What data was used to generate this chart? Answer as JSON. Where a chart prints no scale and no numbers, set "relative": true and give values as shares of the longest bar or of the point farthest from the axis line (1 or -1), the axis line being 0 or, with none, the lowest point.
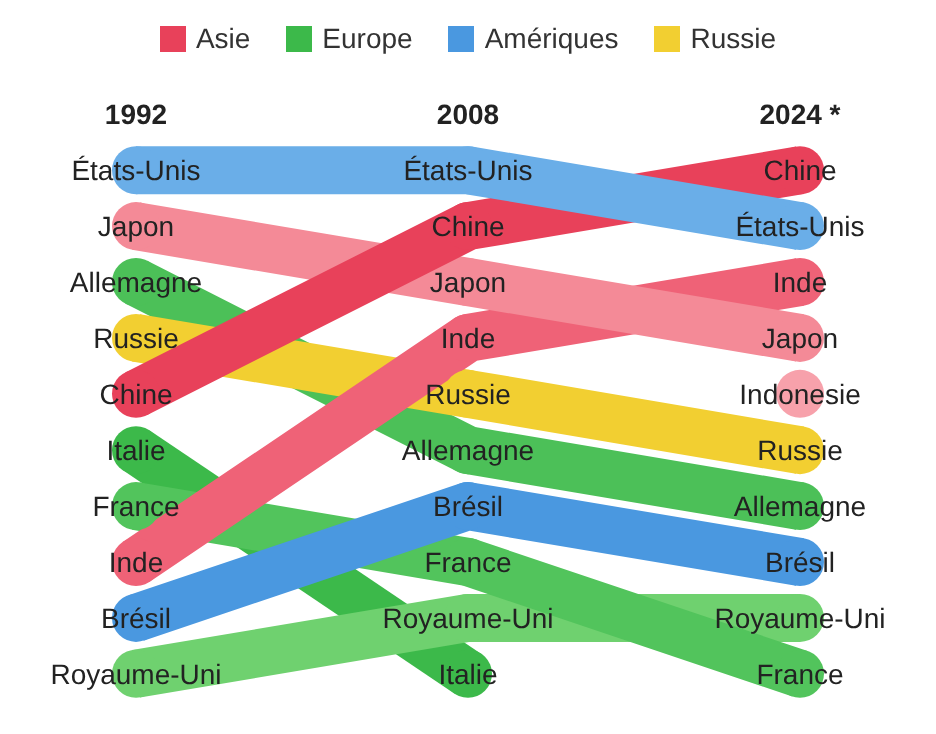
{
  "chart_data": {
    "type": "line",
    "categories": [
      "1992",
      "2008",
      "2024 *"
    ],
    "relative": true,
    "legend": "top",
    "marker": "circle",
    "series": [
      {
        "name": "Asie",
        "color": "#e8415a",
        "values": [
          null,
          null,
          null
        ]
      },
      {
        "name": "Europe",
        "color": "#3cb94a",
        "values": [
          null,
          null,
          null
        ]
      },
      {
        "name": "Amériques",
        "color": "#4a98e0",
        "values": [
          null,
          null,
          null
        ]
      },
      {
        "name": "Russie",
        "color": "#f2cf31",
        "values": [
          null,
          null,
          null
        ]
      },
      {
        "name": "Italie",
        "color": "#3cb94a",
        "values": [
          0.444,
          0,
          null
        ]
      },
      {
        "name": "Royaume-Uni",
        "color": "#6fd16f",
        "values": [
          0,
          0.111,
          0.111
        ]
      },
      {
        "name": "France",
        "color": "#52c45c",
        "values": [
          0.333,
          0.222,
          0
        ]
      },
      {
        "name": "Brésil",
        "color": "#4a98e0",
        "values": [
          0.111,
          0.333,
          0.222
        ]
      },
      {
        "name": "Allemagne",
        "color": "#4cc058",
        "values": [
          0.778,
          0.444,
          0.333
        ]
      },
      {
        "name": "Russie",
        "color": "#f2cf31",
        "values": [
          0.667,
          0.556,
          0.444
        ]
      },
      {
        "name": "Indonesie",
        "color": "#f7a1ab",
        "values": [
          null,
          null,
          0.556
        ]
      },
      {
        "name": "Inde",
        "color": "#ef6277",
        "values": [
          0.222,
          0.667,
          0.778
        ]
      },
      {
        "name": "Japon",
        "color": "#f48a97",
        "values": [
          0.889,
          0.778,
          0.667
        ]
      },
      {
        "name": "Chine",
        "color": "#e8415a",
        "values": [
          0.556,
          0.889,
          1
        ]
      },
      {
        "name": "États-Unis",
        "color": "#6aaee8",
        "values": [
          1,
          1,
          0.889
        ]
      }
    ]
  }
}
